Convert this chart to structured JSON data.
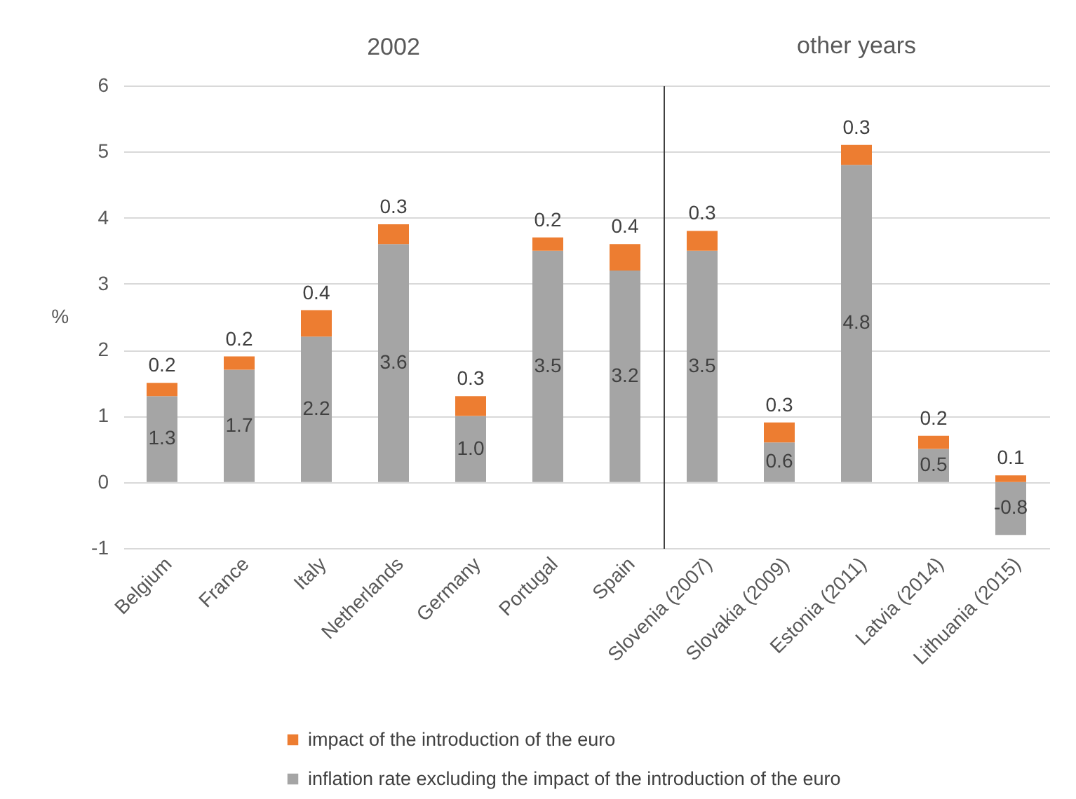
{
  "chart_data": [
    {
      "type": "bar",
      "title": "2002",
      "categories": [
        "Belgium",
        "France",
        "Italy",
        "Netherlands",
        "Germany",
        "Portugal",
        "Spain"
      ],
      "stacked": true,
      "series": [
        {
          "name": "inflation rate excluding the impact of the introduction of the euro",
          "color": "#a5a5a5",
          "values": [
            1.3,
            1.7,
            2.2,
            3.6,
            1.0,
            3.5,
            3.2
          ],
          "value_labels": [
            "1.3",
            "1.7",
            "2.2",
            "3.6",
            "1.0",
            "3.5",
            "3.2"
          ]
        },
        {
          "name": "impact of the introduction of the euro",
          "color": "#ed7d31",
          "values": [
            0.2,
            0.2,
            0.4,
            0.3,
            0.3,
            0.2,
            0.4
          ],
          "value_labels": [
            "0.2",
            "0.2",
            "0.4",
            "0.3",
            "0.3",
            "0.2",
            "0.4"
          ]
        }
      ],
      "ylabel": "%",
      "ylim": [
        -1,
        6
      ],
      "yticks": [
        -1,
        0,
        1,
        2,
        3,
        4,
        5,
        6
      ],
      "grid": "y",
      "legend": "bottom"
    },
    {
      "type": "bar",
      "title": "other years",
      "categories": [
        "Slovenia (2007)",
        "Slovakia (2009)",
        "Estonia (2011)",
        "Latvia (2014)",
        "Lithuania (2015)"
      ],
      "stacked": true,
      "series": [
        {
          "name": "inflation rate excluding the impact of the introduction of the euro",
          "color": "#a5a5a5",
          "values": [
            3.5,
            0.6,
            4.8,
            0.5,
            -0.8
          ],
          "value_labels": [
            "3.5",
            "0.6",
            "4.8",
            "0.5",
            "-0.8"
          ]
        },
        {
          "name": "impact of the introduction of the euro",
          "color": "#ed7d31",
          "values": [
            0.3,
            0.3,
            0.3,
            0.2,
            0.1
          ],
          "value_labels": [
            "0.3",
            "0.3",
            "0.3",
            "0.2",
            "0.1"
          ]
        }
      ],
      "ylim": [
        -1,
        6
      ],
      "yticks": [
        -1,
        0,
        1,
        2,
        3,
        4,
        5,
        6
      ],
      "grid": "y",
      "legend": "bottom",
      "tick_labels": "x"
    }
  ]
}
